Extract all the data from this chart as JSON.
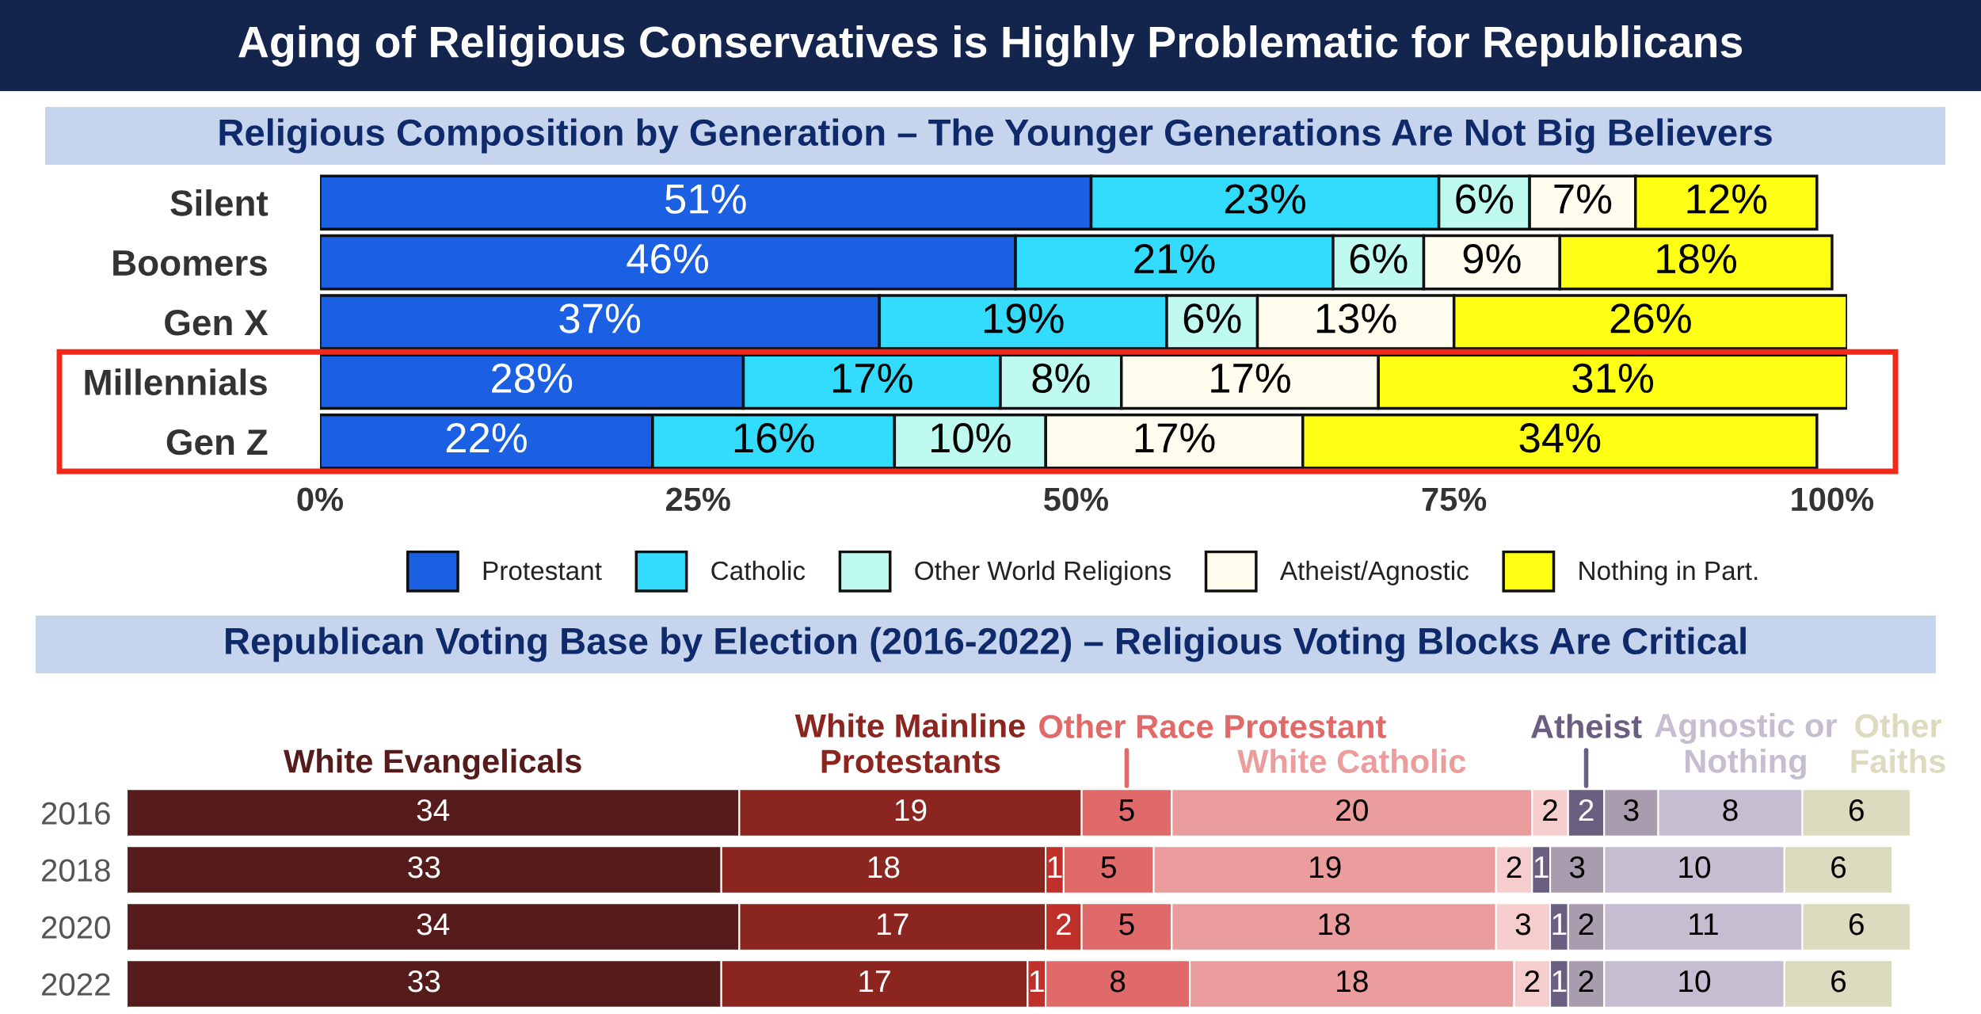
{
  "chart_data": [
    {
      "type": "bar",
      "orientation": "horizontal",
      "stacked": true,
      "title": "Aging of Religious Conservatives is Highly Problematic for Republicans",
      "subtitle": "Religious Composition by Generation – The Younger Generations Are Not Big Believers",
      "categories": [
        "Silent",
        "Boomers",
        "Gen X",
        "Millennials",
        "Gen Z"
      ],
      "series": [
        {
          "name": "Protestant",
          "color": "#1b5fe3",
          "values": [
            51,
            46,
            37,
            28,
            22
          ],
          "value_labels": [
            "51%",
            "46%",
            "37%",
            "28%",
            "22%"
          ]
        },
        {
          "name": "Catholic",
          "color": "#33dcfc",
          "values": [
            23,
            21,
            19,
            17,
            16
          ],
          "value_labels": [
            "23%",
            "21%",
            "19%",
            "17%",
            "16%"
          ]
        },
        {
          "name": "Other World Religions",
          "color": "#bffaf0",
          "values": [
            6,
            6,
            6,
            8,
            10
          ],
          "value_labels": [
            "6%",
            "6%",
            "6%",
            "8%",
            "10%"
          ]
        },
        {
          "name": "Atheist/Agnostic",
          "color": "#fffded",
          "values": [
            7,
            9,
            13,
            17,
            17
          ],
          "value_labels": [
            "7%",
            "9%",
            "13%",
            "17%",
            "17%"
          ]
        },
        {
          "name": "Nothing in Part.",
          "color": "#ffff14",
          "values": [
            12,
            18,
            26,
            31,
            34
          ],
          "value_labels": [
            "12%",
            "18%",
            "26%",
            "31%",
            "34%"
          ]
        }
      ],
      "xlim": [
        0,
        101
      ],
      "xticks": [
        {
          "value": 0,
          "label": "0%"
        },
        {
          "value": 25,
          "label": "25%"
        },
        {
          "value": 50,
          "label": "50%"
        },
        {
          "value": 75,
          "label": "75%"
        },
        {
          "value": 100,
          "label": "100%"
        }
      ],
      "legend": "bottom"
    },
    {
      "type": "bar",
      "orientation": "horizontal",
      "stacked": true,
      "title": "Republican Voting Base by Election (2016-2022) – Religious Voting Blocks Are Critical",
      "categories": [
        "2016",
        "2018",
        "2020",
        "2022"
      ],
      "series": [
        {
          "name": "White Evangelicals",
          "color": "#561c1c",
          "values": [
            34,
            33,
            34,
            33
          ]
        },
        {
          "name": "White Mainline\nProtestants",
          "color": "#8b2520",
          "values": [
            19,
            18,
            17,
            17
          ]
        },
        {
          "color": "#c0302a",
          "values": [
            null,
            1,
            2,
            1
          ]
        },
        {
          "name": "Other Race Protestant",
          "color": "#e06a6a",
          "values": [
            5,
            5,
            5,
            8
          ]
        },
        {
          "name": "White Catholic",
          "color": "#eb9c9c",
          "values": [
            20,
            19,
            18,
            18
          ]
        },
        {
          "color": "#f5cdcd",
          "values": [
            2,
            2,
            3,
            2
          ]
        },
        {
          "name": "Atheist",
          "color": "#6a5f80",
          "values": [
            2,
            1,
            1,
            1
          ]
        },
        {
          "color": "#a89cae",
          "values": [
            3,
            3,
            2,
            2
          ]
        },
        {
          "name": "Agnostic or\nNothing",
          "color": "#c6bdd0",
          "values": [
            8,
            10,
            11,
            10
          ]
        },
        {
          "name": "Other\nFaiths",
          "color": "#dcdabf",
          "values": [
            6,
            6,
            6,
            6
          ]
        }
      ],
      "data_labels": true,
      "tick_labels": "y"
    }
  ]
}
